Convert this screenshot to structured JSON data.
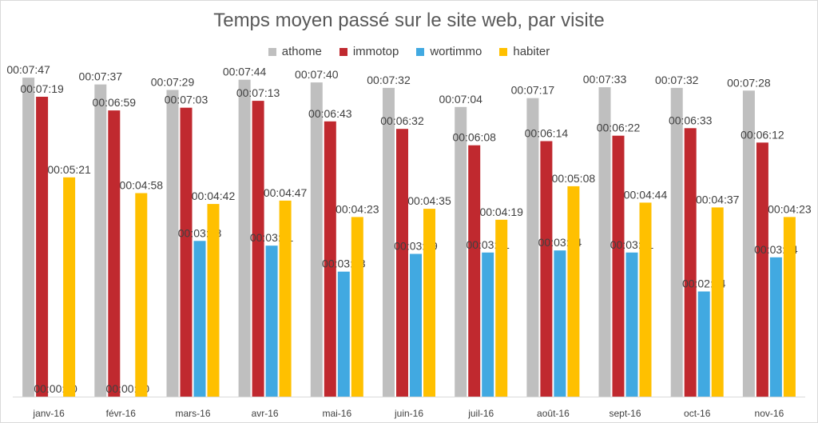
{
  "chart_data": {
    "type": "bar",
    "title": "Temps moyen passé sur le site web, par visite",
    "xlabel": "",
    "ylabel": "",
    "ylim_seconds": [
      0,
      480
    ],
    "grid": false,
    "legend_position": "top",
    "categories": [
      "janv-16",
      "févr-16",
      "mars-16",
      "avr-16",
      "mai-16",
      "juin-16",
      "juil-16",
      "août-16",
      "sept-16",
      "oct-16",
      "nov-16"
    ],
    "series": [
      {
        "name": "athome",
        "color": "#bfbfbf",
        "values": [
          467,
          457,
          449,
          464,
          460,
          452,
          424,
          437,
          453,
          452,
          448
        ],
        "labels": [
          "00:07:47",
          "00:07:37",
          "00:07:29",
          "00:07:44",
          "00:07:40",
          "00:07:32",
          "00:07:04",
          "00:07:17",
          "00:07:33",
          "00:07:32",
          "00:07:28"
        ]
      },
      {
        "name": "immotop",
        "color": "#c0292f",
        "values": [
          439,
          419,
          423,
          433,
          403,
          392,
          368,
          374,
          382,
          393,
          372
        ],
        "labels": [
          "00:07:19",
          "00:06:59",
          "00:07:03",
          "00:07:13",
          "00:06:43",
          "00:06:32",
          "00:06:08",
          "00:06:14",
          "00:06:22",
          "00:06:33",
          "00:06:12"
        ]
      },
      {
        "name": "wortimmo",
        "color": "#41a9e1",
        "values": [
          0,
          0,
          228,
          221,
          183,
          209,
          211,
          214,
          211,
          154,
          204
        ],
        "labels": [
          "00:00:00",
          "00:00:00",
          "00:03:48",
          "00:03:41",
          "00:03:03",
          "00:03:29",
          "00:03:31",
          "00:03:34",
          "00:03:31",
          "00:02:34",
          "00:03:24"
        ]
      },
      {
        "name": "habiter",
        "color": "#ffc000",
        "values": [
          321,
          298,
          282,
          287,
          263,
          275,
          259,
          308,
          284,
          277,
          263
        ],
        "labels": [
          "00:05:21",
          "00:04:58",
          "00:04:42",
          "00:04:47",
          "00:04:23",
          "00:04:35",
          "00:04:19",
          "00:05:08",
          "00:04:44",
          "00:04:37",
          "00:04:23"
        ]
      }
    ]
  }
}
